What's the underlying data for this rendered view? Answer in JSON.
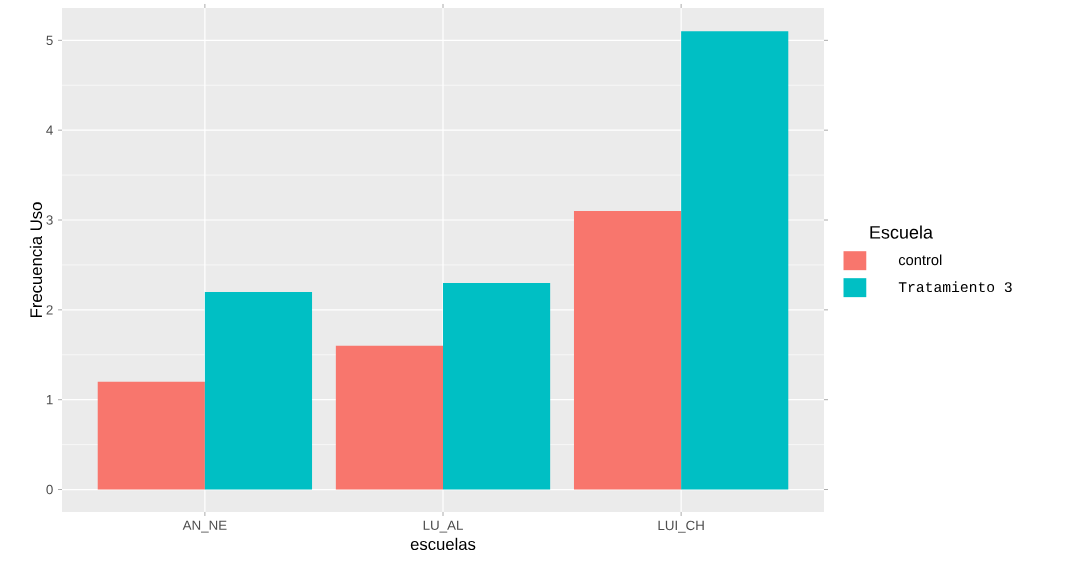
{
  "chart_data": {
    "type": "bar",
    "xlabel": "escuelas",
    "ylabel": "Frecuencia Uso",
    "legend_title": "Escuela",
    "categories": [
      "AN_NE",
      "LU_AL",
      "LUI_CH"
    ],
    "series": [
      {
        "name": "control",
        "color": "#f8766d",
        "values": [
          1.2,
          1.6,
          3.1
        ]
      },
      {
        "name": "Tratamiento 3",
        "color": "#00bfc4",
        "values": [
          2.2,
          2.3,
          5.1
        ]
      }
    ],
    "ylim": [
      -0.25,
      5.36
    ],
    "yticks": [
      0,
      1,
      2,
      3,
      4,
      5
    ],
    "grid": true,
    "legend": "right"
  }
}
